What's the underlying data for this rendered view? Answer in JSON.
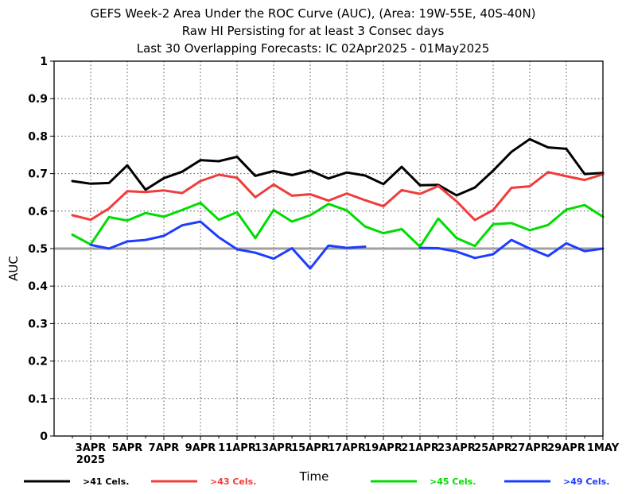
{
  "chart_data": {
    "type": "line",
    "title": "GEFS Week-2 Area Under the ROC Curve (AUC), (Area: 19W-55E, 40S-40N)",
    "subtitle1": "Raw HI Persisting for at least 3 Consec days",
    "subtitle2": "Last 30 Overlapping Forecasts: IC 02Apr2025 - 01May2025",
    "xlabel": "Time",
    "ylabel": "AUC",
    "ylim": [
      0,
      1
    ],
    "yticks": [
      "0",
      "0.1",
      "0.2",
      "0.3",
      "0.4",
      "0.5",
      "0.6",
      "0.7",
      "0.8",
      "0.9",
      "1"
    ],
    "xlim": [
      1,
      31
    ],
    "xticks": [
      {
        "day": 3,
        "label": "3APR",
        "sublabel": "2025"
      },
      {
        "day": 5,
        "label": "5APR"
      },
      {
        "day": 7,
        "label": "7APR"
      },
      {
        "day": 9,
        "label": "9APR"
      },
      {
        "day": 11,
        "label": "11APR"
      },
      {
        "day": 13,
        "label": "13APR"
      },
      {
        "day": 15,
        "label": "15APR"
      },
      {
        "day": 17,
        "label": "17APR"
      },
      {
        "day": 19,
        "label": "19APR"
      },
      {
        "day": 21,
        "label": "21APR"
      },
      {
        "day": 23,
        "label": "23APR"
      },
      {
        "day": 25,
        "label": "25APR"
      },
      {
        "day": 27,
        "label": "27APR"
      },
      {
        "day": 29,
        "label": "29APR"
      },
      {
        "day": 31,
        "label": "1MAY"
      }
    ],
    "reference_line": 0.5,
    "x": [
      2,
      3,
      4,
      5,
      6,
      7,
      8,
      9,
      10,
      11,
      12,
      13,
      14,
      15,
      16,
      17,
      18,
      19,
      20,
      21,
      22,
      23,
      24,
      25,
      26,
      27,
      28,
      29,
      30,
      31
    ],
    "series": [
      {
        "name": ">41 Cels.",
        "color": "#000000",
        "values": [
          0.68,
          0.673,
          0.675,
          0.722,
          0.657,
          0.688,
          0.705,
          0.736,
          0.733,
          0.745,
          0.694,
          0.707,
          0.696,
          0.708,
          0.687,
          0.703,
          0.695,
          0.672,
          0.718,
          0.669,
          0.67,
          0.642,
          0.663,
          0.708,
          0.758,
          0.792,
          0.77,
          0.766,
          0.699,
          0.702
        ]
      },
      {
        "name": ">43 Cels.",
        "color": "#f03c3c",
        "values": [
          0.589,
          0.577,
          0.607,
          0.653,
          0.651,
          0.655,
          0.648,
          0.68,
          0.697,
          0.689,
          0.637,
          0.671,
          0.641,
          0.645,
          0.628,
          0.647,
          0.629,
          0.613,
          0.656,
          0.646,
          0.667,
          0.626,
          0.576,
          0.603,
          0.662,
          0.666,
          0.704,
          0.693,
          0.683,
          0.698
        ]
      },
      {
        "name": ">45 Cels.",
        "color": "#00dc00",
        "values": [
          0.537,
          0.511,
          0.584,
          0.575,
          0.595,
          0.585,
          0.603,
          0.622,
          0.577,
          0.597,
          0.528,
          0.603,
          0.572,
          0.589,
          0.619,
          0.602,
          0.559,
          0.541,
          0.552,
          0.505,
          0.58,
          0.528,
          0.507,
          0.565,
          0.568,
          0.549,
          0.563,
          0.604,
          0.616,
          0.585
        ]
      },
      {
        "name": ">49 Cels.",
        "color": "#1e3cff",
        "values": [
          null,
          0.51,
          0.5,
          0.519,
          0.523,
          0.534,
          0.562,
          0.572,
          0.53,
          0.498,
          0.489,
          0.473,
          0.501,
          0.447,
          0.508,
          0.502,
          0.505,
          null,
          null,
          0.502,
          0.501,
          0.492,
          0.475,
          0.485,
          0.523,
          0.5,
          0.48,
          0.514,
          0.493,
          0.5
        ]
      }
    ]
  }
}
